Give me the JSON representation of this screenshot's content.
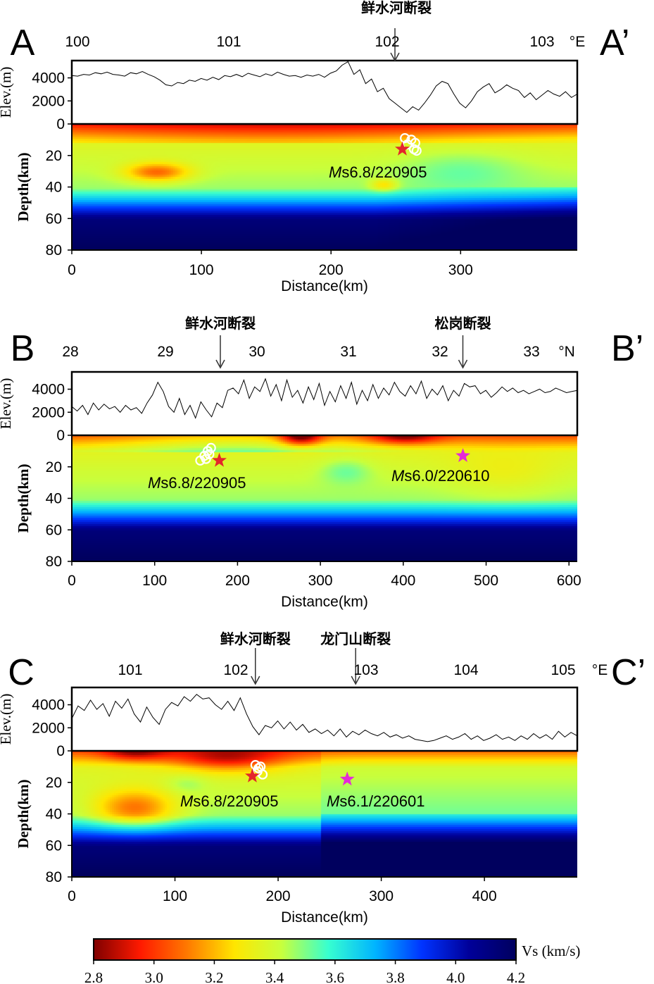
{
  "chart_data": [
    {
      "type": "heatmap",
      "panel": "A",
      "panel_end": "A’",
      "top_axis": {
        "ticks": [
          "100",
          "101",
          "102",
          "103"
        ],
        "unit": "°E",
        "values": [
          100,
          101,
          102,
          103
        ]
      },
      "faults": [
        {
          "label": "鲜水河断裂",
          "x": 102.05
        }
      ],
      "elev_label": "Elev.(m)",
      "elev_ticks": [
        "4000",
        "2000",
        "0"
      ],
      "elev_range": [
        0,
        5500
      ],
      "elev_profile": [
        4200,
        4150,
        4300,
        4250,
        4450,
        4350,
        4500,
        4300,
        4250,
        4150,
        4450,
        4350,
        4550,
        4300,
        4100,
        3800,
        3400,
        3300,
        3600,
        3500,
        3800,
        3700,
        3950,
        3800,
        4050,
        3850,
        4200,
        4100,
        4300,
        4100,
        4400,
        4250,
        4100,
        4350,
        4200,
        4500,
        4300,
        4150,
        4200,
        4050,
        4250,
        4150,
        4300,
        4050,
        4400,
        4600,
        5100,
        5400,
        4300,
        4700,
        3500,
        3900,
        2800,
        3100,
        2200,
        1800,
        1400,
        1000,
        1500,
        1200,
        1800,
        2500,
        3300,
        3700,
        3500,
        2600,
        1800,
        1400,
        2000,
        2800,
        3200,
        3500,
        2700,
        3000,
        3400,
        3100,
        2900,
        2300,
        2700,
        2100,
        2500,
        2900,
        2600,
        2400,
        2800,
        2300,
        2600
      ],
      "depth_label": "Depth(km)",
      "depth_ticks": [
        "0",
        "20",
        "40",
        "60",
        "80"
      ],
      "xlabel": "Distance(km)",
      "x_ticks": [
        "0",
        "100",
        "200",
        "300"
      ],
      "xlim": [
        0,
        390
      ],
      "ylim": [
        0,
        80
      ],
      "events": [
        {
          "label_prefix": "M",
          "label_rest": "s6.8/220905",
          "x": 255,
          "depth": 16,
          "color": "#e4262b"
        }
      ],
      "aftershocks": [
        [
          257,
          9
        ],
        [
          262,
          10
        ],
        [
          265,
          12
        ],
        [
          264,
          16
        ],
        [
          266,
          17
        ],
        [
          259,
          13
        ]
      ]
    },
    {
      "type": "heatmap",
      "panel": "B",
      "panel_end": "B’",
      "top_axis": {
        "ticks": [
          "28",
          "29",
          "30",
          "31",
          "32",
          "33"
        ],
        "unit": "°N",
        "values": [
          28,
          29,
          30,
          31,
          32,
          33
        ]
      },
      "faults": [
        {
          "label": "鲜水河断裂",
          "x": 29.6
        },
        {
          "label": "松岗断裂",
          "x": 32.25
        }
      ],
      "elev_label": "Elev.(m)",
      "elev_ticks": [
        "4000",
        "2000",
        "0"
      ],
      "elev_range": [
        0,
        5500
      ],
      "elev_profile": [
        2500,
        2100,
        2600,
        1800,
        2800,
        2200,
        2700,
        2300,
        2500,
        2000,
        2600,
        2200,
        2400,
        1900,
        2800,
        3500,
        4600,
        3800,
        2500,
        2000,
        3200,
        1800,
        2600,
        1500,
        2900,
        2200,
        1600,
        2800,
        2400,
        3900,
        4100,
        3600,
        4800,
        3200,
        4200,
        3800,
        4900,
        3400,
        4400,
        3000,
        4800,
        3300,
        3900,
        2800,
        4200,
        3100,
        4500,
        2600,
        3800,
        2900,
        4300,
        3200,
        4600,
        2700,
        3900,
        3000,
        4400,
        3200,
        4100,
        3500,
        4600,
        3800,
        3400,
        4300,
        3600,
        4700,
        3200,
        4000,
        3500,
        4300,
        3000,
        3900,
        3400,
        4500,
        4200,
        4300,
        3600,
        3900,
        3300,
        3700,
        4200,
        3800,
        4100,
        3700,
        3900,
        3600,
        3800,
        4000,
        3700,
        3800,
        4100,
        3900,
        3700,
        3800,
        3900
      ],
      "depth_label": "Depth(km)",
      "depth_ticks": [
        "0",
        "20",
        "40",
        "60",
        "80"
      ],
      "xlabel": "Distance(km)",
      "x_ticks": [
        "0",
        "100",
        "200",
        "300",
        "400",
        "500",
        "600"
      ],
      "xlim": [
        0,
        610
      ],
      "ylim": [
        0,
        80
      ],
      "events": [
        {
          "label_prefix": "M",
          "label_rest": "s6.8/220905",
          "x": 178,
          "depth": 16,
          "color": "#e4262b"
        },
        {
          "label_prefix": "M",
          "label_rest": "s6.0/220610",
          "x": 472,
          "depth": 13,
          "color": "#e52ad8"
        }
      ],
      "aftershocks": [
        [
          155,
          16
        ],
        [
          160,
          13
        ],
        [
          164,
          10
        ],
        [
          168,
          8
        ],
        [
          162,
          15
        ],
        [
          166,
          12
        ]
      ]
    },
    {
      "type": "heatmap",
      "panel": "C",
      "panel_end": "C’",
      "top_axis": {
        "ticks": [
          "101",
          "102",
          "103",
          "104",
          "105"
        ],
        "unit": "°E",
        "values": [
          101,
          102,
          103,
          104,
          105
        ]
      },
      "faults": [
        {
          "label": "鲜水河断裂",
          "x": 102.15
        },
        {
          "label": "龙门山断裂",
          "x": 102.92
        }
      ],
      "elev_label": "Elev.(m)",
      "elev_ticks": [
        "4000",
        "2000",
        "0"
      ],
      "elev_range": [
        0,
        5500
      ],
      "elev_profile": [
        2800,
        3900,
        3500,
        4400,
        3600,
        4100,
        3000,
        4300,
        3700,
        4500,
        3200,
        2500,
        3800,
        2900,
        2300,
        3600,
        4200,
        3900,
        4700,
        4300,
        4900,
        4500,
        4600,
        4000,
        3600,
        4300,
        3500,
        4600,
        3200,
        2100,
        1400,
        2200,
        2000,
        2600,
        1900,
        2500,
        1800,
        2300,
        1600,
        1900,
        1500,
        1800,
        1300,
        1900,
        1200,
        1700,
        1400,
        1800,
        1500,
        1300,
        1600,
        1200,
        1400,
        1100,
        1300,
        1000,
        900,
        800,
        900,
        1100,
        1300,
        1000,
        1200,
        1500,
        1000,
        1300,
        900,
        1100,
        1400,
        1000,
        1200,
        900,
        1300,
        1000,
        1500,
        1100,
        1400,
        1000,
        1700,
        1200,
        1600,
        1300
      ],
      "depth_label": "Depth(km)",
      "depth_ticks": [
        "0",
        "20",
        "40",
        "60",
        "80"
      ],
      "xlabel": "Distance(km)",
      "x_ticks": [
        "0",
        "100",
        "200",
        "300",
        "400"
      ],
      "xlim": [
        0,
        490
      ],
      "ylim": [
        0,
        80
      ],
      "events": [
        {
          "label_prefix": "M",
          "label_rest": "s6.8/220905",
          "x": 175,
          "depth": 16,
          "color": "#e4262b"
        },
        {
          "label_prefix": "M",
          "label_rest": "s6.1/220601",
          "x": 267,
          "depth": 18,
          "color": "#e52ad8"
        }
      ],
      "aftershocks": [
        [
          178,
          9
        ],
        [
          183,
          10
        ],
        [
          180,
          13
        ],
        [
          185,
          15
        ],
        [
          181,
          11
        ]
      ]
    }
  ],
  "colorbar": {
    "label": "Vs (km/s)",
    "ticks": [
      "2.8",
      "3.0",
      "3.2",
      "3.4",
      "3.6",
      "3.8",
      "4.0",
      "4.2"
    ],
    "range": [
      2.8,
      4.2
    ],
    "colors": [
      "#7f0000",
      "#ff1a00",
      "#ff7a00",
      "#ffe600",
      "#c8ff3c",
      "#37ffd0",
      "#00b4ff",
      "#0033ff",
      "#000099",
      "#00005e"
    ]
  }
}
